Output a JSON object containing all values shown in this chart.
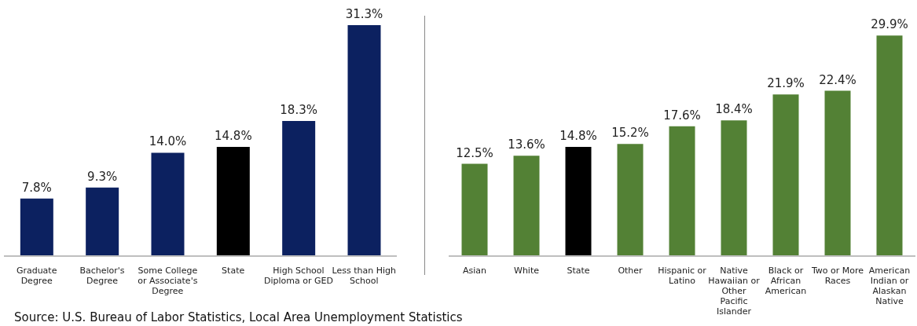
{
  "chart_data": [
    {
      "type": "bar",
      "categories": [
        "Graduate Degree",
        "Bachelor's Degree",
        "Some College or Associate's Degree",
        "State",
        "High School Diploma or GED",
        "Less than High School"
      ],
      "values": [
        7.8,
        9.3,
        14.0,
        14.8,
        18.3,
        31.3
      ],
      "colors": [
        "#0c2160",
        "#0c2160",
        "#0c2160",
        "#000000",
        "#0c2160",
        "#0c2160"
      ],
      "value_labels": [
        "7.8%",
        "9.3%",
        "14.0%",
        "14.8%",
        "18.3%",
        "31.3%"
      ],
      "grid": false,
      "legend": false,
      "annotations": [
        "Source: U.S. Bureau of Labor Statistics, Local Area Unemployment Statistics"
      ]
    },
    {
      "type": "bar",
      "categories": [
        "Asian",
        "White",
        "State",
        "Other",
        "Hispanic or Latino",
        "Native Hawaiian or Other Pacific Islander",
        "Black or African American",
        "Two or More Races",
        "American Indian or Alaskan Native"
      ],
      "values": [
        12.5,
        13.6,
        14.8,
        15.2,
        17.6,
        18.4,
        21.9,
        22.4,
        29.9
      ],
      "colors": [
        "#538135",
        "#538135",
        "#000000",
        "#538135",
        "#538135",
        "#538135",
        "#538135",
        "#538135",
        "#538135"
      ],
      "value_labels": [
        "12.5%",
        "13.6%",
        "14.8%",
        "15.2%",
        "17.6%",
        "18.4%",
        "21.9%",
        "22.4%",
        "29.9%"
      ],
      "grid": false,
      "legend": false
    }
  ]
}
